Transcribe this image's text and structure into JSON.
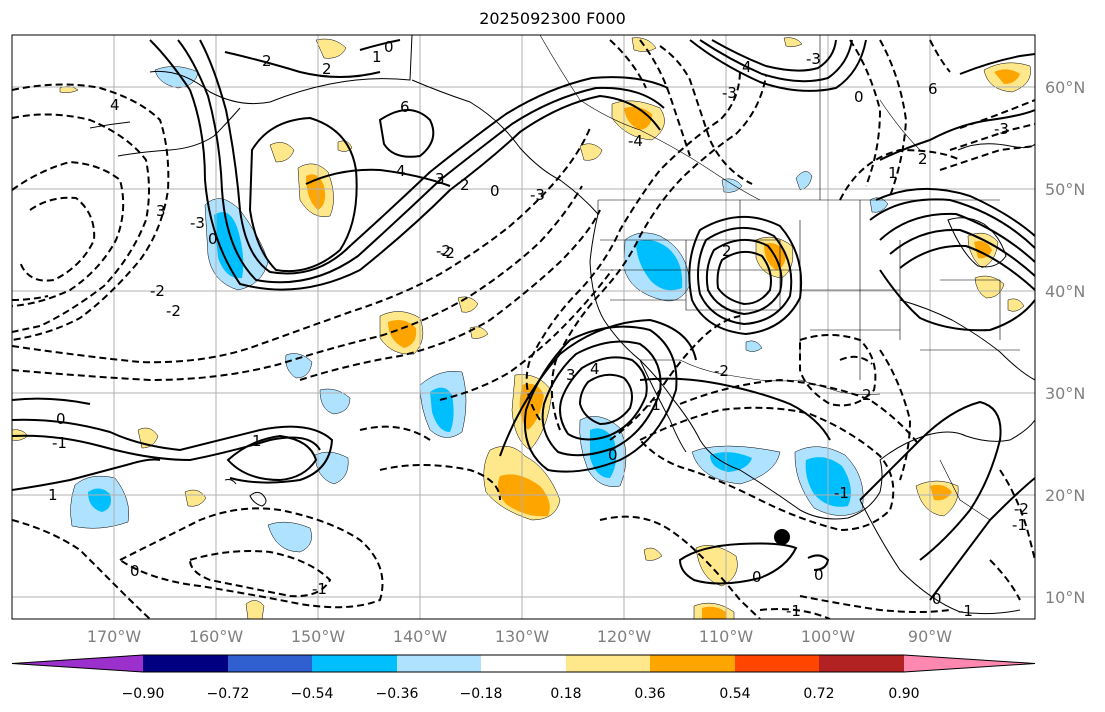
{
  "title": "2025092300 F000",
  "map": {
    "lat_labels": [
      "60°N",
      "50°N",
      "40°N",
      "30°N",
      "20°N",
      "10°N"
    ],
    "lon_labels": [
      "170°W",
      "160°W",
      "150°W",
      "140°W",
      "130°W",
      "120°W",
      "110°W",
      "100°W",
      "90°W"
    ],
    "contour_labels": [
      "2",
      "2",
      "1",
      "0",
      "6",
      "4",
      "3",
      "2",
      "0",
      "4",
      "3",
      "-2",
      "-4",
      "-3",
      "-2",
      "-2",
      "-3",
      "0",
      "1",
      "2",
      "0",
      "-1",
      "-3",
      "-2",
      "3",
      "4",
      "-2",
      "-1",
      "0",
      "2",
      "0",
      "-1",
      "2",
      "-1",
      "1",
      "0",
      "1",
      "0",
      "0",
      "0",
      "-1",
      "-1",
      "6",
      "-3",
      "-1",
      "-2",
      "4",
      "-3"
    ],
    "marker_icon": "point-marker-icon"
  },
  "colorbar": {
    "ticks": [
      "−0.90",
      "−0.72",
      "−0.54",
      "−0.36",
      "−0.18",
      "0.18",
      "0.36",
      "0.54",
      "0.72",
      "0.90"
    ],
    "colors": [
      "#9b30cc",
      "#000080",
      "#3060d0",
      "#00bfff",
      "#aee2ff",
      "#ffffff",
      "#ffe88c",
      "#ffa500",
      "#ff4500",
      "#b22222",
      "#ff88b0",
      "#ff88b0"
    ]
  }
}
